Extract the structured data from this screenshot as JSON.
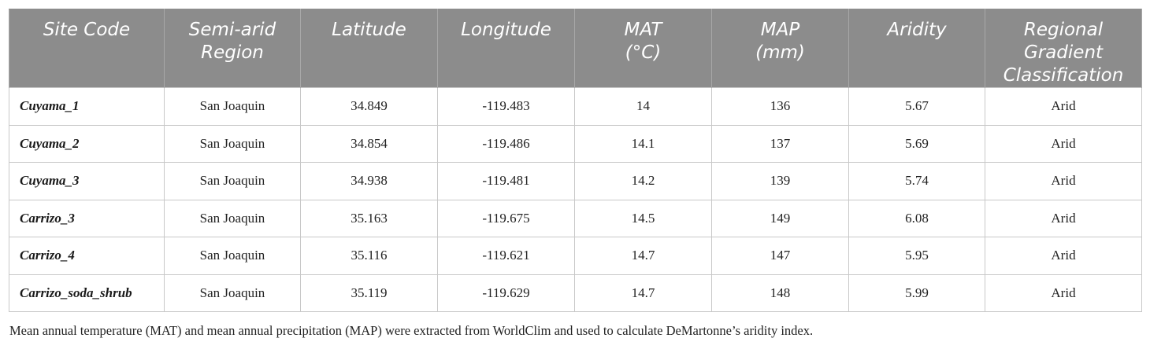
{
  "table": {
    "headers": [
      [
        "Site Code"
      ],
      [
        "Semi-arid",
        "Region"
      ],
      [
        "Latitude"
      ],
      [
        "Longitude"
      ],
      [
        "MAT",
        "(°C)"
      ],
      [
        "MAP",
        "(mm)"
      ],
      [
        "Aridity"
      ],
      [
        "Regional",
        "Gradient",
        "Classification"
      ]
    ],
    "rows": [
      [
        "Cuyama_1",
        "San Joaquin",
        "34.849",
        "-119.483",
        "14",
        "136",
        "5.67",
        "Arid"
      ],
      [
        "Cuyama_2",
        "San Joaquin",
        "34.854",
        "-119.486",
        "14.1",
        "137",
        "5.69",
        "Arid"
      ],
      [
        "Cuyama_3",
        "San Joaquin",
        "34.938",
        "-119.481",
        "14.2",
        "139",
        "5.74",
        "Arid"
      ],
      [
        "Carrizo_3",
        "San Joaquin",
        "35.163",
        "-119.675",
        "14.5",
        "149",
        "6.08",
        "Arid"
      ],
      [
        "Carrizo_4",
        "San Joaquin",
        "35.116",
        "-119.621",
        "14.7",
        "147",
        "5.95",
        "Arid"
      ],
      [
        "Carrizo_soda_shrub",
        "San Joaquin",
        "35.119",
        "-119.629",
        "14.7",
        "148",
        "5.99",
        "Arid"
      ]
    ]
  },
  "footnote": "Mean annual temperature (MAT) and mean annual precipitation (MAP) were extracted from WorldClim and used to calculate DeMartonne’s aridity index."
}
